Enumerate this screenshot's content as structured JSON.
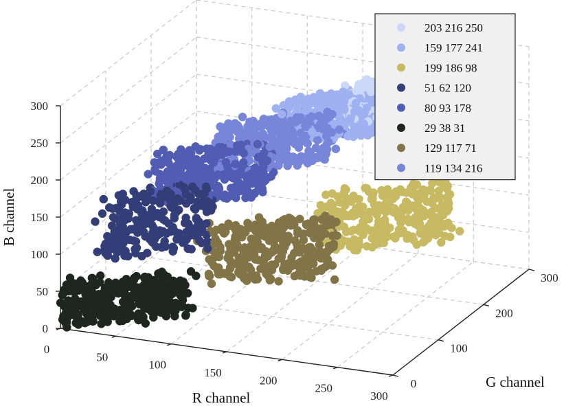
{
  "chart_data": {
    "type": "scatter",
    "dimensions": 3,
    "xlabel": "R channel",
    "ylabel": "G channel",
    "zlabel": "B channel",
    "xlim": [
      0,
      300
    ],
    "ylim": [
      0,
      300
    ],
    "zlim": [
      0,
      300
    ],
    "xticks": [
      "0",
      "50",
      "100",
      "150",
      "200",
      "250",
      "300"
    ],
    "yticks": [
      "0",
      "100",
      "200",
      "300"
    ],
    "zticks": [
      "0",
      "50",
      "100",
      "150",
      "200",
      "250",
      "300"
    ],
    "grid": true,
    "legend_position": "top-right",
    "series": [
      {
        "name": "203 216 250",
        "color": "#cbd8fa",
        "center": [
          203,
          216,
          250
        ]
      },
      {
        "name": "159 177 241",
        "color": "#9fb1f1",
        "center": [
          159,
          177,
          241
        ]
      },
      {
        "name": "199 186 98",
        "color": "#c7ba62",
        "center": [
          199,
          186,
          98
        ]
      },
      {
        "name": "51 62 120",
        "color": "#333e78",
        "center": [
          51,
          62,
          120
        ]
      },
      {
        "name": "80 93 178",
        "color": "#505db2",
        "center": [
          80,
          93,
          178
        ]
      },
      {
        "name": "29 38 31",
        "color": "#1d261f",
        "center": [
          29,
          38,
          31
        ]
      },
      {
        "name": "129 117 71",
        "color": "#817547",
        "center": [
          129,
          117,
          71
        ]
      },
      {
        "name": "119 134 216",
        "color": "#7786d8",
        "center": [
          119,
          134,
          216
        ]
      }
    ]
  }
}
